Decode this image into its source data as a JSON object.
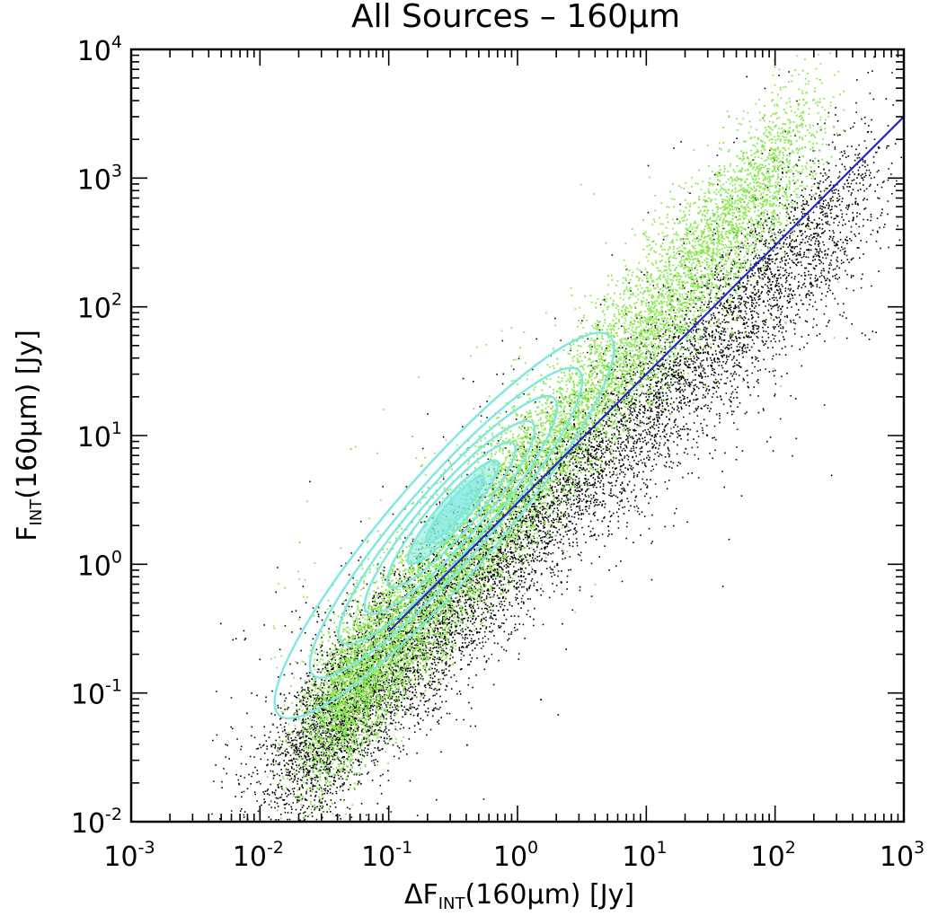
{
  "chart_data": {
    "type": "scatter",
    "title": "All Sources – 160μm",
    "xlabel": {
      "prefix": "ΔF",
      "sub": "INT",
      "suffix": "(160μm)  [Jy]"
    },
    "ylabel": {
      "prefix": "F",
      "sub": "INT",
      "suffix": "(160μm)   [Jy]"
    },
    "x_scale": "log",
    "y_scale": "log",
    "xlim": [
      0.001,
      1000
    ],
    "ylim": [
      0.01,
      10000
    ],
    "x_ticks": [
      {
        "base": "10",
        "exp": "-3",
        "value": 0.001
      },
      {
        "base": "10",
        "exp": "-2",
        "value": 0.01
      },
      {
        "base": "10",
        "exp": "-1",
        "value": 0.1
      },
      {
        "base": "10",
        "exp": "0",
        "value": 1
      },
      {
        "base": "10",
        "exp": "1",
        "value": 10
      },
      {
        "base": "10",
        "exp": "2",
        "value": 100
      },
      {
        "base": "10",
        "exp": "3",
        "value": 1000
      }
    ],
    "y_ticks": [
      {
        "base": "10",
        "exp": "-2",
        "value": 0.01
      },
      {
        "base": "10",
        "exp": "-1",
        "value": 0.1
      },
      {
        "base": "10",
        "exp": "0",
        "value": 1
      },
      {
        "base": "10",
        "exp": "1",
        "value": 10
      },
      {
        "base": "10",
        "exp": "2",
        "value": 100
      },
      {
        "base": "10",
        "exp": "3",
        "value": 1000
      },
      {
        "base": "10",
        "exp": "4",
        "value": 10000
      }
    ],
    "grid": false,
    "legend": "none",
    "series": [
      {
        "kind": "scatter",
        "color": "#000000",
        "points_approx": [
          [
            0.025,
            0.13
          ],
          [
            0.03,
            0.2
          ],
          [
            0.04,
            0.3
          ],
          [
            0.05,
            0.25
          ],
          [
            0.08,
            0.4
          ],
          [
            0.1,
            0.5
          ],
          [
            0.15,
            0.7
          ],
          [
            0.2,
            0.9
          ],
          [
            0.3,
            1.2
          ],
          [
            0.5,
            2
          ],
          [
            0.7,
            2.5
          ],
          [
            1,
            3.5
          ],
          [
            1.5,
            4.5
          ],
          [
            2,
            6
          ],
          [
            3,
            8
          ],
          [
            5,
            12
          ],
          [
            8,
            18
          ],
          [
            10,
            25
          ],
          [
            20,
            40
          ],
          [
            30,
            50
          ],
          [
            50,
            80
          ],
          [
            100,
            150
          ],
          [
            200,
            200
          ],
          [
            400,
            500
          ],
          [
            0.2,
            0.12
          ],
          [
            0.5,
            0.3
          ],
          [
            1,
            0.5
          ],
          [
            2,
            1
          ],
          [
            5,
            2
          ],
          [
            10,
            4
          ],
          [
            20,
            8
          ],
          [
            50,
            20
          ],
          [
            0.4,
            0.04
          ],
          [
            1.5,
            0.09
          ],
          [
            0.06,
            0.02
          ]
        ]
      },
      {
        "kind": "scatter",
        "color": "#86e84a",
        "points_approx": [
          [
            0.03,
            0.25
          ],
          [
            0.04,
            0.4
          ],
          [
            0.05,
            0.6
          ],
          [
            0.06,
            0.8
          ],
          [
            0.08,
            1
          ],
          [
            0.1,
            1.5
          ],
          [
            0.12,
            2
          ],
          [
            0.15,
            3
          ],
          [
            0.2,
            4
          ],
          [
            0.25,
            5
          ],
          [
            0.3,
            6
          ],
          [
            0.4,
            8
          ],
          [
            0.5,
            10
          ],
          [
            0.7,
            14
          ],
          [
            1,
            20
          ],
          [
            1.5,
            30
          ],
          [
            2,
            40
          ],
          [
            3,
            60
          ],
          [
            4,
            100
          ],
          [
            5,
            150
          ],
          [
            7,
            200
          ],
          [
            10,
            300
          ],
          [
            20,
            600
          ],
          [
            30,
            800
          ],
          [
            50,
            1500
          ],
          [
            100,
            2000
          ],
          [
            200,
            4800
          ],
          [
            0.1,
            0.8
          ],
          [
            0.2,
            1.6
          ],
          [
            0.5,
            3
          ],
          [
            1,
            6
          ],
          [
            2,
            12
          ],
          [
            5,
            25
          ],
          [
            10,
            50
          ],
          [
            0.15,
            10
          ],
          [
            0.05,
            8
          ],
          [
            0.02,
            1.5
          ]
        ]
      },
      {
        "kind": "contour",
        "color": "#7ee8e0",
        "center": [
          0.27,
          2.0
        ],
        "levels": 7
      },
      {
        "kind": "line",
        "color": "#2a2ab5",
        "x": [
          0.1,
          1000
        ],
        "y": [
          0.3,
          3000
        ]
      }
    ]
  }
}
